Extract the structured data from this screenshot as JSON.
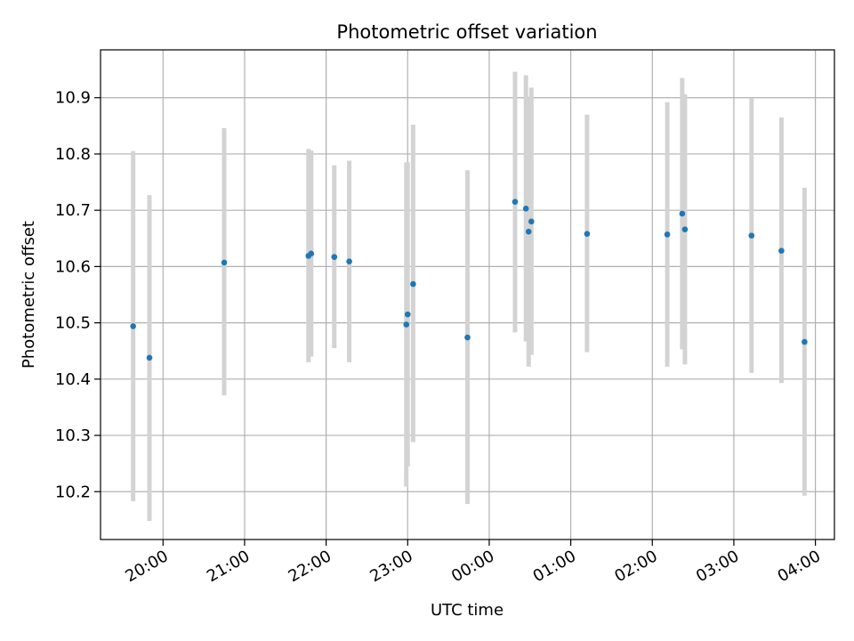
{
  "chart_data": {
    "type": "scatter",
    "title": "Photometric offset variation",
    "xlabel": "UTC time",
    "ylabel": "Photometric offset",
    "x_is_time": true,
    "xlim": [
      "19:14",
      "04:14"
    ],
    "ylim": [
      10.115,
      10.985
    ],
    "x_ticks": [
      "20:00",
      "21:00",
      "22:00",
      "23:00",
      "00:00",
      "01:00",
      "02:00",
      "03:00",
      "04:00"
    ],
    "y_ticks": [
      10.2,
      10.3,
      10.4,
      10.5,
      10.6,
      10.7,
      10.8,
      10.9
    ],
    "y_tick_labels": [
      "10.2",
      "10.3",
      "10.4",
      "10.5",
      "10.6",
      "10.7",
      "10.8",
      "10.9"
    ],
    "grid": true,
    "colors": {
      "point": "#1f77b4",
      "errorbar": "#d3d3d3",
      "grid": "#b0b0b0"
    },
    "points": [
      {
        "x": "19:38",
        "y": 10.494,
        "lo": 10.183,
        "hi": 10.805
      },
      {
        "x": "19:50",
        "y": 10.438,
        "lo": 10.148,
        "hi": 10.727
      },
      {
        "x": "20:45",
        "y": 10.607,
        "lo": 10.371,
        "hi": 10.846
      },
      {
        "x": "21:47",
        "y": 10.619,
        "lo": 10.43,
        "hi": 10.809
      },
      {
        "x": "21:49",
        "y": 10.623,
        "lo": 10.44,
        "hi": 10.806
      },
      {
        "x": "22:06",
        "y": 10.617,
        "lo": 10.455,
        "hi": 10.78
      },
      {
        "x": "22:17",
        "y": 10.609,
        "lo": 10.43,
        "hi": 10.788
      },
      {
        "x": "22:59",
        "y": 10.497,
        "lo": 10.209,
        "hi": 10.785
      },
      {
        "x": "23:00",
        "y": 10.515,
        "lo": 10.245,
        "hi": 10.785
      },
      {
        "x": "23:04",
        "y": 10.569,
        "lo": 10.288,
        "hi": 10.852
      },
      {
        "x": "23:44",
        "y": 10.474,
        "lo": 10.178,
        "hi": 10.771
      },
      {
        "x": "00:19",
        "y": 10.715,
        "lo": 10.483,
        "hi": 10.946
      },
      {
        "x": "00:27",
        "y": 10.703,
        "lo": 10.467,
        "hi": 10.94
      },
      {
        "x": "00:29",
        "y": 10.662,
        "lo": 10.422,
        "hi": 10.9
      },
      {
        "x": "00:31",
        "y": 10.68,
        "lo": 10.443,
        "hi": 10.918
      },
      {
        "x": "01:12",
        "y": 10.658,
        "lo": 10.448,
        "hi": 10.87
      },
      {
        "x": "02:11",
        "y": 10.657,
        "lo": 10.422,
        "hi": 10.892
      },
      {
        "x": "02:22",
        "y": 10.694,
        "lo": 10.453,
        "hi": 10.935
      },
      {
        "x": "02:24",
        "y": 10.666,
        "lo": 10.426,
        "hi": 10.906
      },
      {
        "x": "03:13",
        "y": 10.655,
        "lo": 10.411,
        "hi": 10.899
      },
      {
        "x": "03:35",
        "y": 10.628,
        "lo": 10.393,
        "hi": 10.865
      },
      {
        "x": "03:52",
        "y": 10.466,
        "lo": 10.193,
        "hi": 10.74
      }
    ]
  }
}
